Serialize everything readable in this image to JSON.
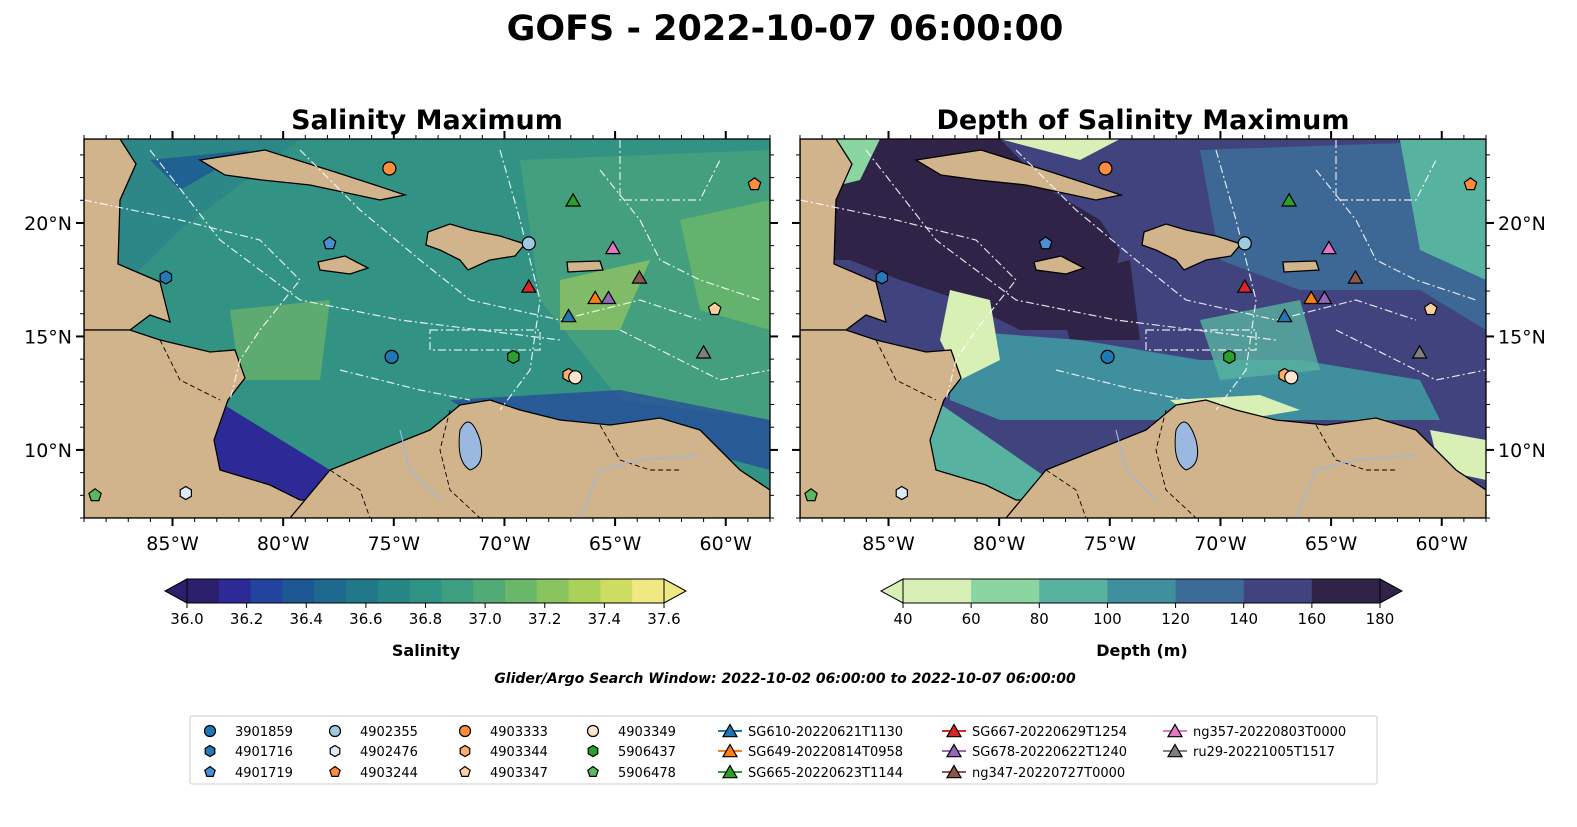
{
  "figure_title": "GOFS - 2022-10-07 06:00:00",
  "search_window": "Glider/Argo Search Window: 2022-10-02 06:00:00 to 2022-10-07 06:00:00",
  "chart_data": [
    {
      "type": "heatmap",
      "title": "Salinity Maximum",
      "lon_range": [
        -89,
        -58
      ],
      "lat_range": [
        7,
        23.7
      ],
      "x_ticks": [
        "85°W",
        "80°W",
        "75°W",
        "70°W",
        "65°W",
        "60°W"
      ],
      "y_ticks": [
        "20°N",
        "15°N",
        "10°N"
      ],
      "colorbar": {
        "label": "Salinity",
        "min": 36.0,
        "max": 37.6,
        "step": 0.1,
        "tick_labels": [
          "36.0",
          "36.2",
          "36.4",
          "36.6",
          "36.8",
          "37.0",
          "37.2",
          "37.4",
          "37.6"
        ],
        "colors": [
          "#2b1f6e",
          "#2d2a98",
          "#23449e",
          "#1d5894",
          "#1e6a8e",
          "#207889",
          "#258685",
          "#2e9384",
          "#3d9f7f",
          "#52ab75",
          "#6bb86a",
          "#89c45f",
          "#aad158",
          "#ccdd62",
          "#f0e882"
        ],
        "extend": "both"
      }
    },
    {
      "type": "heatmap",
      "title": "Depth of Salinity Maximum",
      "lon_range": [
        -89,
        -58
      ],
      "lat_range": [
        7,
        23.7
      ],
      "x_ticks": [
        "85°W",
        "80°W",
        "75°W",
        "70°W",
        "65°W",
        "60°W"
      ],
      "y_ticks": [
        "20°N",
        "15°N",
        "10°N"
      ],
      "colorbar": {
        "label": "Depth (m)",
        "min": 40,
        "max": 180,
        "step": 20,
        "tick_labels": [
          "40",
          "60",
          "80",
          "100",
          "120",
          "140",
          "160",
          "180"
        ],
        "colors": [
          "#d8efb5",
          "#8ad5a0",
          "#57b3a0",
          "#3f8f9f",
          "#3d6b98",
          "#41437f",
          "#2f2447"
        ],
        "extend": "both"
      }
    }
  ],
  "platforms": [
    {
      "id": "3901859",
      "marker": "circle",
      "color": "#1f77b4",
      "lon": -75.1,
      "lat": 14.1
    },
    {
      "id": "4901716",
      "marker": "hexagon",
      "color": "#2878b8",
      "lon": -85.3,
      "lat": 17.6
    },
    {
      "id": "4901719",
      "marker": "pentagon",
      "color": "#4a90d0",
      "lon": -77.9,
      "lat": 19.1
    },
    {
      "id": "4902355",
      "marker": "circle",
      "color": "#9ecae1",
      "lon": -68.9,
      "lat": 19.1
    },
    {
      "id": "4902476",
      "marker": "hexagon",
      "color": "#deebf7",
      "lon": -84.4,
      "lat": 8.1
    },
    {
      "id": "4903244",
      "marker": "pentagon",
      "color": "#fd8d3c",
      "lon": -58.7,
      "lat": 21.7
    },
    {
      "id": "4903333",
      "marker": "circle",
      "color": "#fd8d3c",
      "lon": -75.2,
      "lat": 22.4
    },
    {
      "id": "4903344",
      "marker": "hexagon",
      "color": "#fdae6b",
      "lon": -67.1,
      "lat": 13.3
    },
    {
      "id": "4903347",
      "marker": "pentagon",
      "color": "#fdd0a2",
      "lon": -60.5,
      "lat": 16.2
    },
    {
      "id": "4903349",
      "marker": "circle",
      "color": "#fee6ce",
      "lon": -66.8,
      "lat": 13.2
    },
    {
      "id": "5906437",
      "marker": "hexagon",
      "color": "#2ca02c",
      "lon": -69.6,
      "lat": 14.1
    },
    {
      "id": "5906478",
      "marker": "pentagon",
      "color": "#5cb85c",
      "lon": -88.5,
      "lat": 8.0
    },
    {
      "id": "SG610-20220621T1130",
      "marker": "triangle",
      "color": "#1f77b4",
      "lon": -67.1,
      "lat": 15.9
    },
    {
      "id": "SG649-20220814T0958",
      "marker": "triangle",
      "color": "#ff7f0e",
      "lon": -65.9,
      "lat": 16.7
    },
    {
      "id": "SG665-20220623T1144",
      "marker": "triangle",
      "color": "#2ca02c",
      "lon": -66.9,
      "lat": 21.0
    },
    {
      "id": "SG667-20220629T1254",
      "marker": "triangle",
      "color": "#d62728",
      "lon": -68.9,
      "lat": 17.2
    },
    {
      "id": "SG678-20220622T1240",
      "marker": "triangle",
      "color": "#9467bd",
      "lon": -65.3,
      "lat": 16.7
    },
    {
      "id": "ng347-20220727T0000",
      "marker": "triangle",
      "color": "#8c564b",
      "lon": -63.9,
      "lat": 17.6
    },
    {
      "id": "ng357-20220803T0000",
      "marker": "triangle",
      "color": "#e377c2",
      "lon": -65.1,
      "lat": 18.9
    },
    {
      "id": "ru29-20221005T1517",
      "marker": "triangle",
      "color": "#7f7f7f",
      "lon": -61.0,
      "lat": 14.3
    }
  ],
  "colors": {
    "land": "#d2b48c",
    "lake": "#9bb8e0",
    "grid_lines": "#ffffff",
    "coast": "#000000"
  }
}
